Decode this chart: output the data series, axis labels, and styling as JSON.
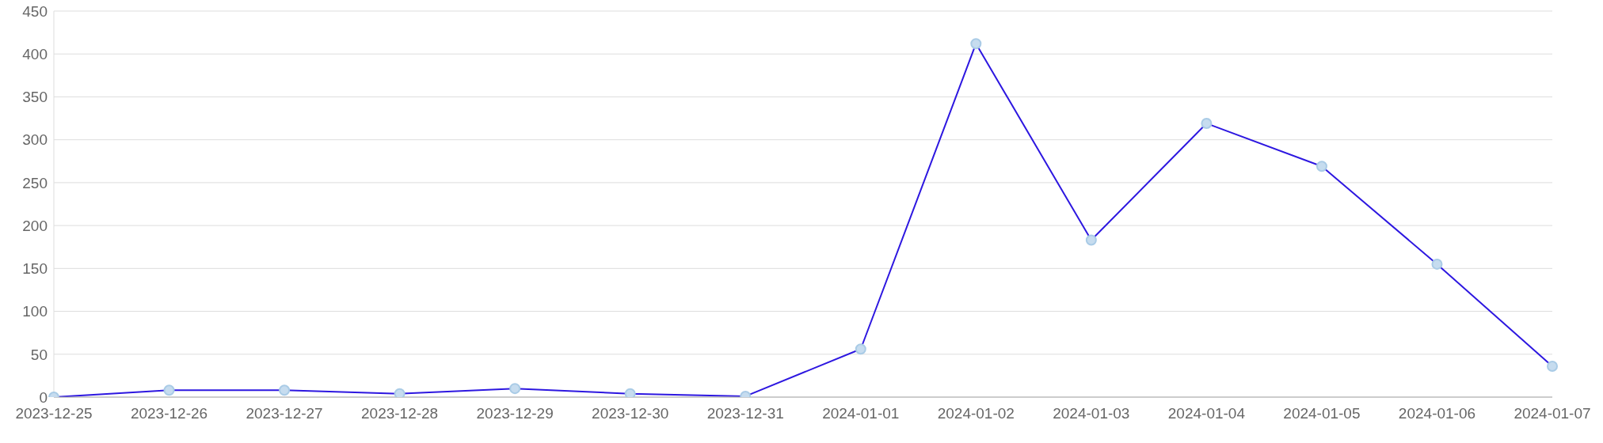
{
  "chart_data": {
    "type": "line",
    "categories": [
      "2023-12-25",
      "2023-12-26",
      "2023-12-27",
      "2023-12-28",
      "2023-12-29",
      "2023-12-30",
      "2023-12-31",
      "2024-01-01",
      "2024-01-02",
      "2024-01-03",
      "2024-01-04",
      "2024-01-05",
      "2024-01-06",
      "2024-01-07"
    ],
    "series": [
      {
        "color": "#2d17e0",
        "values": [
          0,
          8,
          8,
          4,
          10,
          4,
          1,
          56,
          412,
          183,
          319,
          269,
          155,
          36
        ]
      }
    ],
    "ylim": [
      0,
      450
    ],
    "yticks": [
      0,
      50,
      100,
      150,
      200,
      250,
      300,
      350,
      400,
      450
    ],
    "grid": "y",
    "marker": "circle",
    "line_style": "solid"
  }
}
